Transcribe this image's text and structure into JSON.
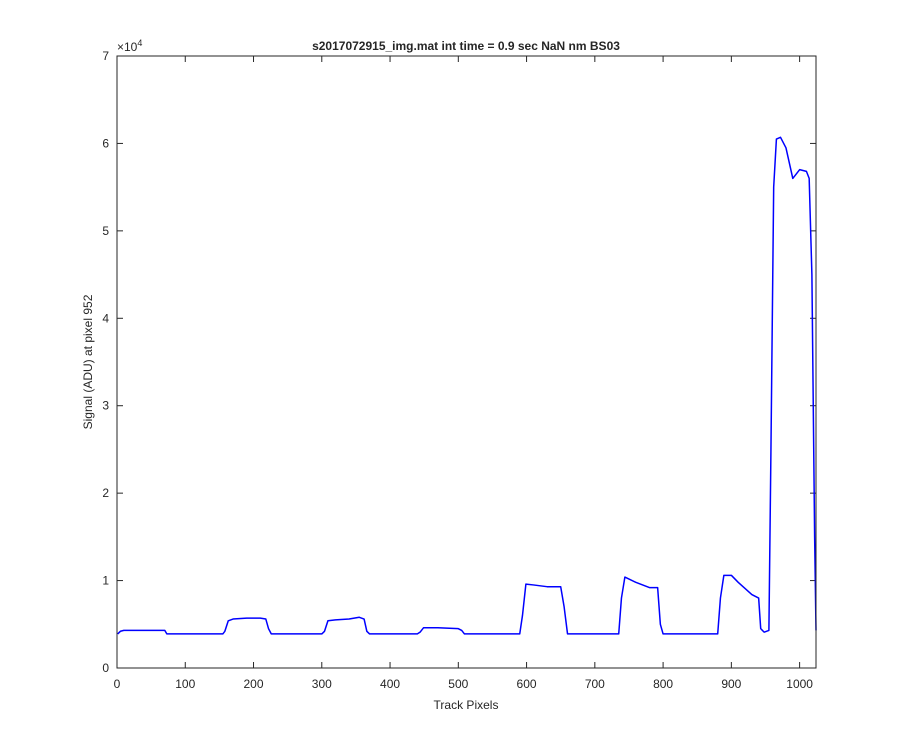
{
  "chart_data": {
    "type": "line",
    "title": "s2017072915_img.mat int time = 0.9 sec  NaN nm BS03",
    "x_label": "Track Pixels",
    "y_label": "Signal (ADU) at pixel 952",
    "y_multiplier_base": "×10",
    "y_multiplier_exponent": "4",
    "xlim": [
      0,
      1024
    ],
    "xticks": [
      0,
      100,
      200,
      300,
      400,
      500,
      600,
      700,
      800,
      900,
      1000
    ],
    "ylim": [
      0,
      7
    ],
    "yticks": [
      0,
      1,
      2,
      3,
      4,
      5,
      6,
      7
    ],
    "grid": false,
    "x": [
      1,
      5,
      10,
      20,
      40,
      60,
      70,
      73,
      80,
      100,
      130,
      155,
      158,
      163,
      170,
      190,
      210,
      218,
      222,
      226,
      240,
      270,
      300,
      304,
      309,
      320,
      340,
      355,
      362,
      366,
      370,
      400,
      440,
      444,
      449,
      470,
      500,
      505,
      509,
      520,
      560,
      590,
      594,
      599,
      610,
      630,
      650,
      655,
      660,
      680,
      720,
      735,
      739,
      744,
      760,
      780,
      792,
      796,
      800,
      820,
      860,
      880,
      884,
      889,
      900,
      910,
      930,
      940,
      943,
      948,
      955,
      958,
      962,
      966,
      972,
      980,
      990,
      1000,
      1010,
      1014,
      1018,
      1022,
      1024
    ],
    "series": [
      {
        "color": "#0000ff",
        "values": [
          0.39,
          0.42,
          0.43,
          0.43,
          0.43,
          0.43,
          0.43,
          0.39,
          0.39,
          0.39,
          0.39,
          0.39,
          0.42,
          0.54,
          0.56,
          0.57,
          0.57,
          0.56,
          0.45,
          0.39,
          0.39,
          0.39,
          0.39,
          0.42,
          0.54,
          0.55,
          0.56,
          0.58,
          0.56,
          0.42,
          0.39,
          0.39,
          0.39,
          0.41,
          0.46,
          0.46,
          0.45,
          0.43,
          0.39,
          0.39,
          0.39,
          0.39,
          0.6,
          0.96,
          0.95,
          0.93,
          0.93,
          0.7,
          0.39,
          0.39,
          0.39,
          0.39,
          0.8,
          1.04,
          0.98,
          0.92,
          0.92,
          0.5,
          0.39,
          0.39,
          0.39,
          0.39,
          0.8,
          1.06,
          1.06,
          0.98,
          0.84,
          0.8,
          0.45,
          0.41,
          0.43,
          2.5,
          5.5,
          6.05,
          6.07,
          5.95,
          5.6,
          5.7,
          5.68,
          5.6,
          4.5,
          1.5,
          0.43
        ]
      }
    ]
  }
}
